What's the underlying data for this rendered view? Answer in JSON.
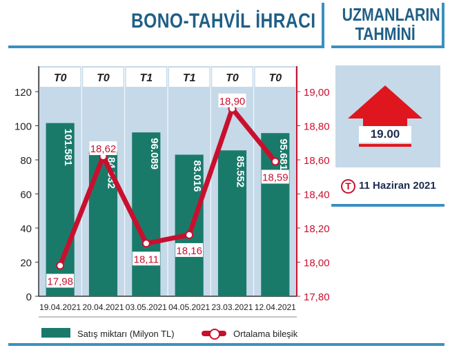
{
  "header": {
    "title": "BONO-TAHVİL İHRACI"
  },
  "expectation": {
    "title_line1": "UZMANLARIN",
    "title_line2": "TAHMİNİ",
    "value": "19.00",
    "date_badge": "T",
    "date": "11 Haziran 2021",
    "arrow_color": "#e0161e"
  },
  "legend": {
    "bar_label": "Satış miktarı (Milyon TL)",
    "line_label": "Ortalama bileşik"
  },
  "colors": {
    "bar": "#1a7a6a",
    "line": "#c8102e",
    "panel": "#c5d9e9",
    "accent": "#3b8fc0"
  },
  "chart_data": {
    "type": "bar+line",
    "categories": [
      "19.04.2021",
      "20.04.2021",
      "03.05.2021",
      "04.05.2021",
      "23.03.2021",
      "12.04.2021"
    ],
    "term_labels": [
      "T0",
      "T0",
      "T1",
      "T1",
      "T0",
      "T0"
    ],
    "series": [
      {
        "name": "Satış miktarı (Milyon TL)",
        "type": "bar",
        "axis": "left",
        "values": [
          101.581,
          84.832,
          96.089,
          83.016,
          85.552,
          95.681
        ],
        "labels": [
          "101.581",
          "84.832",
          "96.089",
          "83.016",
          "85.552",
          "95.681"
        ]
      },
      {
        "name": "Ortalama bileşik",
        "type": "line",
        "axis": "right",
        "values": [
          17.98,
          18.62,
          18.11,
          18.16,
          18.9,
          18.59
        ],
        "labels": [
          "17,98",
          "18,62",
          "18,11",
          "18,16",
          "18,90",
          "18,59"
        ]
      }
    ],
    "y_left": {
      "ylim": [
        0,
        120
      ],
      "ticks": [
        "0",
        "20",
        "40",
        "60",
        "80",
        "100",
        "120"
      ]
    },
    "y_right": {
      "ylim": [
        17.8,
        19.0
      ],
      "ticks": [
        "17,80",
        "18,00",
        "18,20",
        "18,40",
        "18,60",
        "18,80",
        "19,00"
      ]
    },
    "grid": false
  }
}
